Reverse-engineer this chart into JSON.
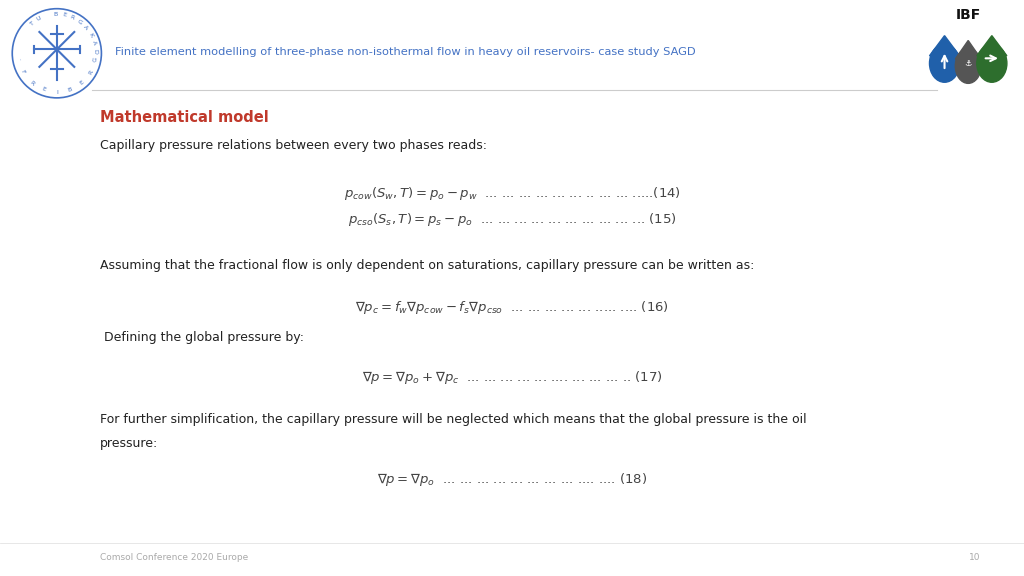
{
  "title": "Finite element modelling of three-phase non-isothermal flow in heavy oil reservoirs- case study SAGD",
  "title_color": "#4472C4",
  "section_heading": "Mathematical model",
  "section_heading_color": "#C0392B",
  "bg_color": "#FFFFFF",
  "footer_text": "Comsol Conference 2020 Europe",
  "footer_page": "10",
  "para1": "Capillary pressure relations between every two phases reads:",
  "para2": "Assuming that the fractional flow is only dependent on saturations, capillary pressure can be written as:",
  "para3": " Defining the global pressure by:",
  "para4a": "For further simplification, the capillary pressure will be neglected which means that the global pressure is the oil",
  "para4b": "pressure:",
  "dots14": "... ... ... ... ... .... ... ... ..... (14)",
  "dots15": "... ... ... ... ... ... ... ... ... ... (15)",
  "dots16": "... ... ... ... ... ..... .... (16)",
  "dots17": "... ... ... ... .... ... ... ... ... .. (17)",
  "dots18": "... ... ... ... ... ... ... .... .... (18)"
}
